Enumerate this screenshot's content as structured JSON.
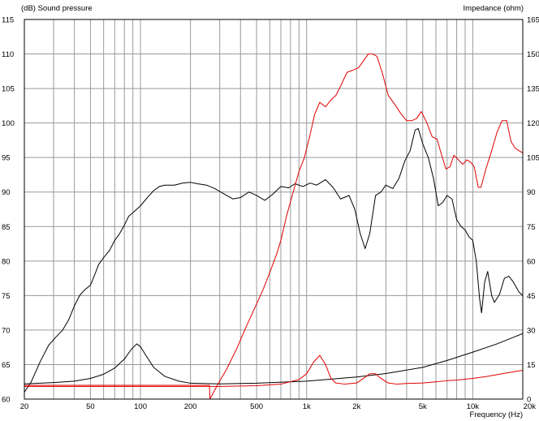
{
  "chart_data": {
    "type": "line",
    "title": "",
    "ylabel_left": "(dB)  Sound pressure",
    "ylabel_right": "Impedance  (ohm)",
    "xlabel": "Frequency  (Hz)",
    "x_scale": "log",
    "xlim": [
      20,
      20000
    ],
    "ylim_left": [
      60,
      115
    ],
    "ylim_right": [
      0,
      165
    ],
    "grid": true,
    "x_tick_labels": [
      {
        "value": 20,
        "label": "20"
      },
      {
        "value": 50,
        "label": "50"
      },
      {
        "value": 100,
        "label": "100"
      },
      {
        "value": 200,
        "label": "200"
      },
      {
        "value": 500,
        "label": "500"
      },
      {
        "value": 1000,
        "label": "1k"
      },
      {
        "value": 2000,
        "label": "2k"
      },
      {
        "value": 5000,
        "label": "5k"
      },
      {
        "value": 10000,
        "label": "10k"
      },
      {
        "value": 20000,
        "label": "20k"
      }
    ],
    "y_left_ticks": [
      60,
      65,
      70,
      75,
      80,
      85,
      90,
      95,
      100,
      105,
      110,
      115
    ],
    "y_right_ticks": [
      0,
      15,
      30,
      45,
      60,
      75,
      90,
      105,
      120,
      135,
      150,
      165
    ],
    "colors": {
      "spl": "#000000",
      "impedance": "#e00000",
      "grid": "#9a9a9a",
      "frame": "#000000"
    },
    "series": [
      {
        "axis": "left",
        "color": "#000000",
        "points": [
          [
            20,
            61
          ],
          [
            22,
            62.5
          ],
          [
            25,
            65.5
          ],
          [
            28,
            67.8
          ],
          [
            31,
            69
          ],
          [
            34,
            70
          ],
          [
            37,
            71.5
          ],
          [
            40,
            73.5
          ],
          [
            43,
            75
          ],
          [
            46,
            75.8
          ],
          [
            50,
            76.5
          ],
          [
            53,
            78
          ],
          [
            56,
            79.5
          ],
          [
            60,
            80.5
          ],
          [
            65,
            81.5
          ],
          [
            70,
            83
          ],
          [
            75,
            84
          ],
          [
            80,
            85.2
          ],
          [
            85,
            86.5
          ],
          [
            90,
            87
          ],
          [
            100,
            88
          ],
          [
            110,
            89.2
          ],
          [
            120,
            90.2
          ],
          [
            130,
            90.8
          ],
          [
            140,
            91
          ],
          [
            160,
            91
          ],
          [
            180,
            91.3
          ],
          [
            200,
            91.4
          ],
          [
            220,
            91.2
          ],
          [
            250,
            91
          ],
          [
            280,
            90.5
          ],
          [
            320,
            89.7
          ],
          [
            360,
            89
          ],
          [
            400,
            89.2
          ],
          [
            450,
            90
          ],
          [
            500,
            89.5
          ],
          [
            560,
            88.8
          ],
          [
            620,
            89.6
          ],
          [
            700,
            90.8
          ],
          [
            780,
            90.6
          ],
          [
            850,
            91.2
          ],
          [
            950,
            90.8
          ],
          [
            1050,
            91.3
          ],
          [
            1150,
            91
          ],
          [
            1300,
            91.8
          ],
          [
            1450,
            90.6
          ],
          [
            1600,
            89
          ],
          [
            1800,
            89.5
          ],
          [
            1950,
            87.5
          ],
          [
            2100,
            84
          ],
          [
            2250,
            81.8
          ],
          [
            2400,
            84
          ],
          [
            2600,
            89.5
          ],
          [
            2800,
            90
          ],
          [
            3000,
            91
          ],
          [
            3300,
            90.5
          ],
          [
            3600,
            92
          ],
          [
            3900,
            94.5
          ],
          [
            4200,
            96
          ],
          [
            4500,
            99
          ],
          [
            4700,
            99.2
          ],
          [
            5000,
            97
          ],
          [
            5400,
            95
          ],
          [
            5800,
            92
          ],
          [
            6200,
            88
          ],
          [
            6600,
            88.5
          ],
          [
            7000,
            89.5
          ],
          [
            7500,
            89
          ],
          [
            8000,
            86
          ],
          [
            8500,
            85
          ],
          [
            9000,
            84.5
          ],
          [
            9500,
            83.5
          ],
          [
            10000,
            83
          ],
          [
            10500,
            80
          ],
          [
            11000,
            74.5
          ],
          [
            11300,
            72.5
          ],
          [
            11800,
            77
          ],
          [
            12300,
            78.5
          ],
          [
            13000,
            75
          ],
          [
            13500,
            74
          ],
          [
            14500,
            75.2
          ],
          [
            15500,
            77.5
          ],
          [
            16500,
            77.8
          ],
          [
            17500,
            77
          ],
          [
            19000,
            75.5
          ],
          [
            20000,
            75
          ]
        ]
      },
      {
        "axis": "left",
        "color": "#000000",
        "points": [
          [
            20,
            62.2
          ],
          [
            30,
            62.4
          ],
          [
            40,
            62.6
          ],
          [
            50,
            63
          ],
          [
            60,
            63.6
          ],
          [
            70,
            64.5
          ],
          [
            80,
            65.8
          ],
          [
            88,
            67.2
          ],
          [
            95,
            68
          ],
          [
            100,
            67.6
          ],
          [
            108,
            66.3
          ],
          [
            120,
            64.6
          ],
          [
            140,
            63.3
          ],
          [
            170,
            62.6
          ],
          [
            200,
            62.3
          ],
          [
            300,
            62.2
          ],
          [
            500,
            62.3
          ],
          [
            1000,
            62.6
          ],
          [
            2000,
            63.2
          ],
          [
            3000,
            63.7
          ],
          [
            5000,
            64.6
          ],
          [
            7000,
            65.6
          ],
          [
            10000,
            66.8
          ],
          [
            14000,
            68
          ],
          [
            20000,
            69.5
          ]
        ]
      },
      {
        "axis": "right",
        "color": "#e00000",
        "points": [
          [
            20,
            6
          ],
          [
            100,
            6
          ],
          [
            200,
            6
          ],
          [
            260,
            6
          ],
          [
            262,
            0
          ],
          [
            290,
            6
          ],
          [
            330,
            13
          ],
          [
            380,
            22
          ],
          [
            430,
            31
          ],
          [
            490,
            40
          ],
          [
            550,
            48
          ],
          [
            600,
            55
          ],
          [
            660,
            63
          ],
          [
            700,
            69
          ],
          [
            760,
            80
          ],
          [
            830,
            90
          ],
          [
            900,
            99
          ],
          [
            970,
            105
          ],
          [
            1050,
            115
          ],
          [
            1120,
            124
          ],
          [
            1200,
            129
          ],
          [
            1300,
            127
          ],
          [
            1400,
            130
          ],
          [
            1500,
            132
          ],
          [
            1600,
            136
          ],
          [
            1750,
            142
          ],
          [
            1900,
            143
          ],
          [
            2050,
            144
          ],
          [
            2200,
            147
          ],
          [
            2350,
            150
          ],
          [
            2500,
            150
          ],
          [
            2650,
            149
          ],
          [
            2850,
            142
          ],
          [
            3100,
            132
          ],
          [
            3400,
            128
          ],
          [
            3700,
            124
          ],
          [
            4000,
            121
          ],
          [
            4300,
            121
          ],
          [
            4600,
            122
          ],
          [
            4900,
            125
          ],
          [
            5300,
            120
          ],
          [
            5700,
            114
          ],
          [
            6100,
            113
          ],
          [
            6500,
            106
          ],
          [
            6900,
            100
          ],
          [
            7300,
            101
          ],
          [
            7700,
            106
          ],
          [
            8200,
            104
          ],
          [
            8700,
            102
          ],
          [
            9200,
            104
          ],
          [
            9700,
            103
          ],
          [
            10200,
            101
          ],
          [
            10800,
            92
          ],
          [
            11200,
            92
          ],
          [
            12000,
            100
          ],
          [
            13000,
            108
          ],
          [
            14000,
            116
          ],
          [
            15000,
            121
          ],
          [
            16000,
            121
          ],
          [
            17000,
            112
          ],
          [
            18000,
            109
          ],
          [
            20000,
            107
          ]
        ]
      },
      {
        "axis": "right",
        "color": "#e00000",
        "points": [
          [
            20,
            5.5
          ],
          [
            100,
            5.5
          ],
          [
            300,
            5.5
          ],
          [
            500,
            5.8
          ],
          [
            700,
            6.5
          ],
          [
            900,
            8.5
          ],
          [
            1000,
            11
          ],
          [
            1100,
            16
          ],
          [
            1200,
            19
          ],
          [
            1300,
            15
          ],
          [
            1400,
            9
          ],
          [
            1500,
            7
          ],
          [
            1700,
            6.5
          ],
          [
            2000,
            7
          ],
          [
            2200,
            9
          ],
          [
            2400,
            11
          ],
          [
            2600,
            11
          ],
          [
            2800,
            9
          ],
          [
            3100,
            7
          ],
          [
            3500,
            6.5
          ],
          [
            4000,
            6.8
          ],
          [
            5000,
            7
          ],
          [
            6000,
            7.5
          ],
          [
            7000,
            8
          ],
          [
            8000,
            8.3
          ],
          [
            10000,
            9
          ],
          [
            12000,
            9.8
          ],
          [
            15000,
            11
          ],
          [
            18000,
            12
          ],
          [
            20000,
            12.5
          ]
        ]
      }
    ]
  }
}
